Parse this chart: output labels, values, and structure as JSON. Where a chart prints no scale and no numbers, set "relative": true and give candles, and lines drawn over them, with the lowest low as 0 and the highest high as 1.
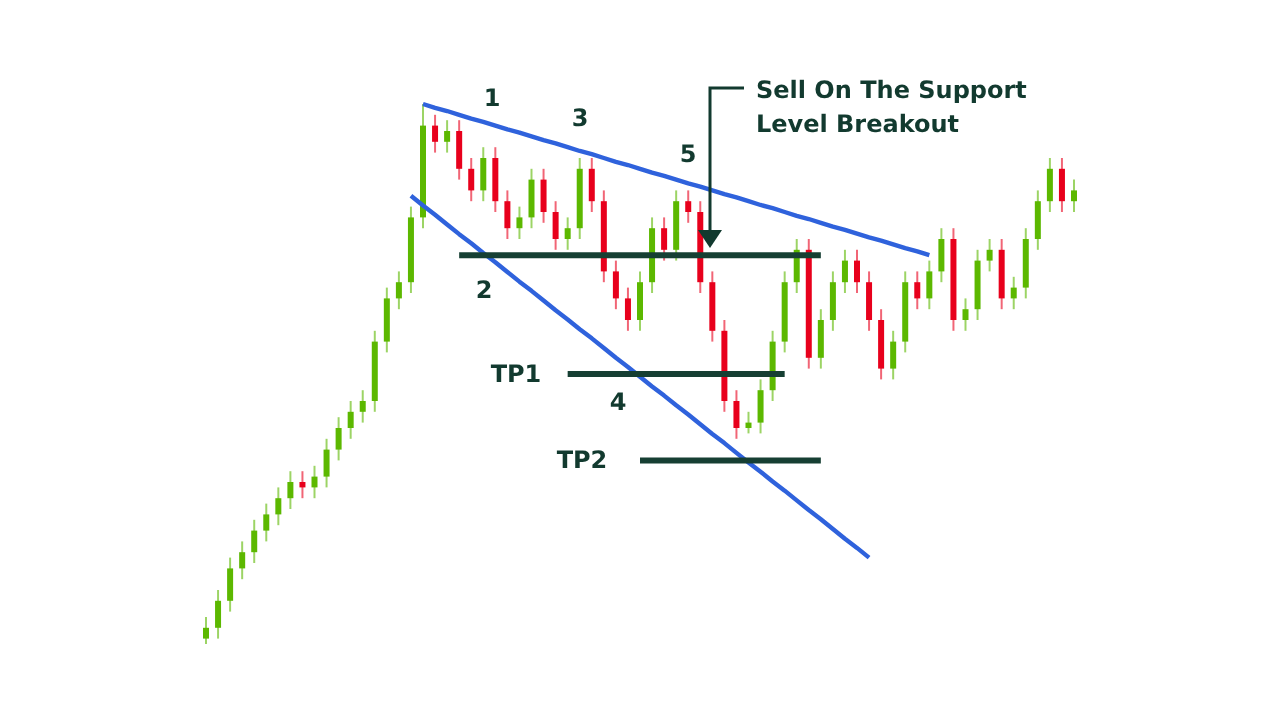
{
  "chart_data": {
    "type": "candlestick",
    "relative": true,
    "categories": [
      null,
      null,
      null,
      null,
      null,
      null,
      null,
      null,
      null,
      null,
      null,
      null,
      null,
      null,
      null,
      null,
      null,
      null,
      null,
      null,
      null,
      null,
      null,
      null,
      null,
      null,
      null,
      null,
      null,
      null,
      null,
      null,
      null,
      null,
      null,
      null,
      null,
      null,
      null,
      null,
      null,
      null,
      null,
      null,
      null,
      null,
      null,
      null,
      null,
      null,
      null,
      null,
      null,
      null,
      null,
      null,
      null,
      null,
      null,
      null,
      null,
      null,
      null,
      null,
      null,
      null,
      null,
      null,
      null,
      null,
      null,
      null,
      null
    ],
    "ohlc": [
      [
        0.01,
        0.05,
        0,
        0.03
      ],
      [
        0.03,
        0.1,
        0.01,
        0.08
      ],
      [
        0.08,
        0.16,
        0.06,
        0.14
      ],
      [
        0.14,
        0.19,
        0.12,
        0.17
      ],
      [
        0.17,
        0.23,
        0.15,
        0.21
      ],
      [
        0.21,
        0.26,
        0.19,
        0.24
      ],
      [
        0.24,
        0.29,
        0.22,
        0.27
      ],
      [
        0.27,
        0.32,
        0.25,
        0.3
      ],
      [
        0.3,
        0.32,
        0.27,
        0.29
      ],
      [
        0.29,
        0.33,
        0.27,
        0.31
      ],
      [
        0.31,
        0.38,
        0.29,
        0.36
      ],
      [
        0.36,
        0.42,
        0.34,
        0.4
      ],
      [
        0.4,
        0.45,
        0.38,
        0.43
      ],
      [
        0.43,
        0.47,
        0.41,
        0.45
      ],
      [
        0.45,
        0.58,
        0.43,
        0.56
      ],
      [
        0.56,
        0.66,
        0.54,
        0.64
      ],
      [
        0.64,
        0.69,
        0.62,
        0.67
      ],
      [
        0.67,
        0.81,
        0.65,
        0.79
      ],
      [
        0.79,
        1,
        0.77,
        0.96
      ],
      [
        0.96,
        0.98,
        0.91,
        0.93
      ],
      [
        0.93,
        0.97,
        0.91,
        0.95
      ],
      [
        0.95,
        0.97,
        0.86,
        0.88
      ],
      [
        0.88,
        0.9,
        0.82,
        0.84
      ],
      [
        0.84,
        0.92,
        0.82,
        0.9
      ],
      [
        0.9,
        0.92,
        0.8,
        0.82
      ],
      [
        0.82,
        0.84,
        0.75,
        0.77
      ],
      [
        0.77,
        0.81,
        0.75,
        0.79
      ],
      [
        0.79,
        0.88,
        0.77,
        0.86
      ],
      [
        0.86,
        0.88,
        0.78,
        0.8
      ],
      [
        0.8,
        0.82,
        0.73,
        0.75
      ],
      [
        0.75,
        0.79,
        0.73,
        0.77
      ],
      [
        0.77,
        0.9,
        0.75,
        0.88
      ],
      [
        0.88,
        0.9,
        0.8,
        0.82
      ],
      [
        0.82,
        0.84,
        0.67,
        0.69
      ],
      [
        0.69,
        0.71,
        0.62,
        0.64
      ],
      [
        0.64,
        0.66,
        0.58,
        0.6
      ],
      [
        0.6,
        0.69,
        0.58,
        0.67
      ],
      [
        0.67,
        0.79,
        0.65,
        0.77
      ],
      [
        0.77,
        0.79,
        0.71,
        0.73
      ],
      [
        0.73,
        0.84,
        0.71,
        0.82
      ],
      [
        0.82,
        0.84,
        0.78,
        0.8
      ],
      [
        0.8,
        0.82,
        0.65,
        0.67
      ],
      [
        0.67,
        0.69,
        0.56,
        0.58
      ],
      [
        0.58,
        0.6,
        0.43,
        0.45
      ],
      [
        0.45,
        0.47,
        0.38,
        0.4
      ],
      [
        0.4,
        0.43,
        0.39,
        0.41
      ],
      [
        0.41,
        0.49,
        0.39,
        0.47
      ],
      [
        0.47,
        0.58,
        0.45,
        0.56
      ],
      [
        0.56,
        0.69,
        0.54,
        0.67
      ],
      [
        0.67,
        0.75,
        0.65,
        0.73
      ],
      [
        0.73,
        0.75,
        0.51,
        0.53
      ],
      [
        0.53,
        0.62,
        0.51,
        0.6
      ],
      [
        0.6,
        0.69,
        0.58,
        0.67
      ],
      [
        0.67,
        0.73,
        0.65,
        0.71
      ],
      [
        0.71,
        0.73,
        0.65,
        0.67
      ],
      [
        0.67,
        0.69,
        0.58,
        0.6
      ],
      [
        0.6,
        0.62,
        0.49,
        0.51
      ],
      [
        0.51,
        0.58,
        0.49,
        0.56
      ],
      [
        0.56,
        0.69,
        0.54,
        0.67
      ],
      [
        0.67,
        0.69,
        0.62,
        0.64
      ],
      [
        0.64,
        0.71,
        0.62,
        0.69
      ],
      [
        0.69,
        0.77,
        0.67,
        0.75
      ],
      [
        0.75,
        0.77,
        0.58,
        0.6
      ],
      [
        0.6,
        0.64,
        0.58,
        0.62
      ],
      [
        0.62,
        0.73,
        0.6,
        0.71
      ],
      [
        0.71,
        0.75,
        0.69,
        0.73
      ],
      [
        0.73,
        0.75,
        0.62,
        0.64
      ],
      [
        0.64,
        0.68,
        0.62,
        0.66
      ],
      [
        0.66,
        0.77,
        0.64,
        0.75
      ],
      [
        0.75,
        0.84,
        0.73,
        0.82
      ],
      [
        0.82,
        0.9,
        0.8,
        0.88
      ],
      [
        0.88,
        0.9,
        0.8,
        0.82
      ],
      [
        0.82,
        0.86,
        0.8,
        0.84
      ]
    ],
    "series": [
      {
        "type": "line",
        "color": "#2f62dc",
        "values": [
          null,
          null,
          null,
          null,
          null,
          null,
          null,
          null,
          null,
          null,
          null,
          null,
          null,
          null,
          null,
          null,
          null,
          null,
          1.0,
          0.993,
          0.987,
          0.98,
          0.973,
          0.967,
          0.96,
          0.953,
          0.947,
          0.94,
          0.933,
          0.927,
          0.92,
          0.913,
          0.907,
          0.9,
          0.893,
          0.887,
          0.88,
          0.873,
          0.867,
          0.86,
          0.853,
          0.847,
          0.84,
          0.833,
          0.827,
          0.82,
          0.813,
          0.807,
          0.8,
          0.793,
          0.787,
          0.78,
          0.773,
          0.767,
          0.76,
          0.753,
          0.747,
          0.74,
          0.733,
          0.727,
          0.72,
          null,
          null,
          null,
          null,
          null,
          null,
          null,
          null,
          null,
          null,
          null,
          null
        ]
      },
      {
        "type": "line",
        "color": "#2f62dc",
        "values": [
          null,
          null,
          null,
          null,
          null,
          null,
          null,
          null,
          null,
          null,
          null,
          null,
          null,
          null,
          null,
          null,
          null,
          0.83,
          0.812,
          0.795,
          0.777,
          0.759,
          0.742,
          0.724,
          0.707,
          0.689,
          0.671,
          0.654,
          0.636,
          0.618,
          0.601,
          0.583,
          0.566,
          0.548,
          0.53,
          0.513,
          0.495,
          0.477,
          0.46,
          0.442,
          0.425,
          0.407,
          0.389,
          0.372,
          0.354,
          0.336,
          0.319,
          0.301,
          0.284,
          0.266,
          0.248,
          0.231,
          0.213,
          0.195,
          0.178,
          0.16,
          null,
          null,
          null,
          null,
          null,
          null,
          null,
          null,
          null,
          null,
          null,
          null,
          null,
          null,
          null,
          null,
          null
        ]
      },
      {
        "type": "line",
        "color": "#163f33",
        "values": [
          null,
          null,
          null,
          null,
          null,
          null,
          null,
          null,
          null,
          null,
          null,
          null,
          null,
          null,
          null,
          null,
          null,
          null,
          null,
          null,
          null,
          0.72,
          0.72,
          0.72,
          0.72,
          0.72,
          0.72,
          0.72,
          0.72,
          0.72,
          0.72,
          0.72,
          0.72,
          0.72,
          0.72,
          0.72,
          0.72,
          0.72,
          0.72,
          0.72,
          0.72,
          0.72,
          0.72,
          0.72,
          0.72,
          0.72,
          0.72,
          0.72,
          0.72,
          0.72,
          0.72,
          0.72,
          null,
          null,
          null,
          null,
          null,
          null,
          null,
          null,
          null,
          null,
          null,
          null,
          null,
          null,
          null,
          null,
          null,
          null,
          null,
          null,
          null
        ]
      },
      {
        "type": "line",
        "color": "#163f33",
        "values": [
          null,
          null,
          null,
          null,
          null,
          null,
          null,
          null,
          null,
          null,
          null,
          null,
          null,
          null,
          null,
          null,
          null,
          null,
          null,
          null,
          null,
          null,
          null,
          null,
          null,
          null,
          null,
          null,
          null,
          null,
          0.5,
          0.5,
          0.5,
          0.5,
          0.5,
          0.5,
          0.5,
          0.5,
          0.5,
          0.5,
          0.5,
          0.5,
          0.5,
          0.5,
          0.5,
          0.5,
          0.5,
          0.5,
          0.5,
          null,
          null,
          null,
          null,
          null,
          null,
          null,
          null,
          null,
          null,
          null,
          null,
          null,
          null,
          null,
          null,
          null,
          null,
          null,
          null,
          null,
          null,
          null,
          null
        ]
      },
      {
        "type": "line",
        "color": "#163f33",
        "values": [
          null,
          null,
          null,
          null,
          null,
          null,
          null,
          null,
          null,
          null,
          null,
          null,
          null,
          null,
          null,
          null,
          null,
          null,
          null,
          null,
          null,
          null,
          null,
          null,
          null,
          null,
          null,
          null,
          null,
          null,
          null,
          null,
          null,
          null,
          null,
          null,
          0.34,
          0.34,
          0.34,
          0.34,
          0.34,
          0.34,
          0.34,
          0.34,
          0.34,
          0.34,
          0.34,
          0.34,
          0.34,
          0.34,
          0.34,
          0.34,
          null,
          null,
          null,
          null,
          null,
          null,
          null,
          null,
          null,
          null,
          null,
          null,
          null,
          null,
          null,
          null,
          null,
          null,
          null,
          null,
          null
        ]
      }
    ],
    "annotations": [
      "1",
      "2",
      "3",
      "4",
      "5",
      "TP1",
      "TP2",
      "Sell On The Support Level Breakout"
    ]
  }
}
